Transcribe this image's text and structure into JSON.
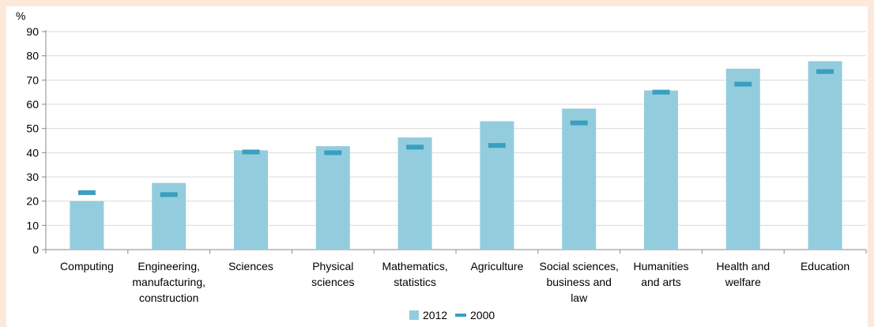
{
  "chart_data": {
    "type": "bar",
    "ylabel": "%",
    "ylim": [
      0,
      90
    ],
    "yticks": [
      0,
      10,
      20,
      30,
      40,
      50,
      60,
      70,
      80,
      90
    ],
    "grid": true,
    "legend_position": "bottom",
    "categories": [
      [
        "Computing"
      ],
      [
        "Engineering,",
        "manufacturing,",
        "construction"
      ],
      [
        "Sciences"
      ],
      [
        "Physical",
        "sciences"
      ],
      [
        "Mathematics,",
        "statistics"
      ],
      [
        "Agriculture"
      ],
      [
        "Social sciences,",
        "business and",
        "law"
      ],
      [
        "Humanities",
        "and arts"
      ],
      [
        "Health and",
        "welfare"
      ],
      [
        "Education"
      ]
    ],
    "series": [
      {
        "name": "2012",
        "mark": "bar",
        "color": "#93cddd",
        "values": [
          20,
          27.5,
          41,
          42.7,
          46.3,
          53,
          58.2,
          65.7,
          74.7,
          77.8
        ]
      },
      {
        "name": "2000",
        "mark": "dash",
        "color": "#3a9fc0",
        "values": [
          23.5,
          22.7,
          40.3,
          40,
          42.3,
          43,
          52.3,
          65,
          68.3,
          73.5
        ]
      }
    ]
  }
}
